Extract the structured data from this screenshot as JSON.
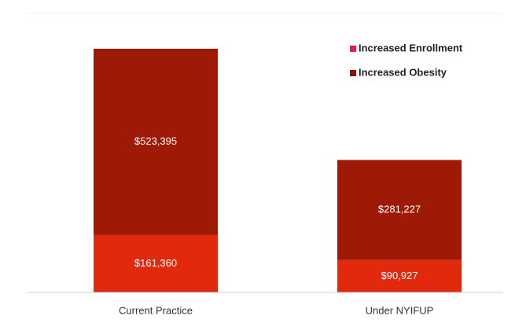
{
  "chart_data": {
    "type": "stacked_bar",
    "categories": [
      "Current Practice",
      "Under NYIFUP"
    ],
    "series": [
      {
        "name": "Increased Enrollment",
        "color": "#e0290d",
        "legend_color": "#e0204a",
        "values": [
          161360,
          90927
        ],
        "value_labels": [
          "$161,360",
          "$90,927"
        ]
      },
      {
        "name": "Increased Obesity",
        "color": "#9e1a06",
        "legend_color": "#8a1505",
        "values": [
          523395,
          281227
        ],
        "value_labels": [
          "$523,395",
          "$281,227"
        ]
      }
    ],
    "legend": "top-right"
  }
}
